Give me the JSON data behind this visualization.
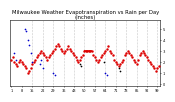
{
  "title": "Milwaukee Weather Evapotranspiration vs Rain per Day\n(Inches)",
  "title_fontsize": 3.8,
  "background_color": "#ffffff",
  "et_color": "#dd0000",
  "rain_color": "#0000cc",
  "black_color": "#000000",
  "pink_color": "#ff8080",
  "ylim": [
    -0.02,
    0.58
  ],
  "tick_fontsize": 2.5,
  "grid_color": "#999999",
  "et_data": [
    0.22,
    0.24,
    0.2,
    0.18,
    0.16,
    0.2,
    0.22,
    0.2,
    0.18,
    0.16,
    0.14,
    0.1,
    0.12,
    0.14,
    0.18,
    0.2,
    0.22,
    0.24,
    0.26,
    0.28,
    0.3,
    0.28,
    0.26,
    0.24,
    0.22,
    0.24,
    0.26,
    0.28,
    0.3,
    0.32,
    0.34,
    0.36,
    0.34,
    0.32,
    0.3,
    0.28,
    0.3,
    0.32,
    0.34,
    0.32,
    0.3,
    0.28,
    0.26,
    0.24,
    0.22,
    0.2,
    0.22,
    0.24,
    0.26,
    0.3,
    0.3,
    0.3,
    0.3,
    0.3,
    0.3,
    0.26,
    0.24,
    0.22,
    0.2,
    0.22,
    0.24,
    0.26,
    0.28,
    0.3,
    0.32,
    0.34,
    0.3,
    0.28,
    0.26,
    0.22,
    0.2,
    0.18,
    0.16,
    0.18,
    0.2,
    0.22,
    0.26,
    0.28,
    0.3,
    0.28,
    0.26,
    0.24,
    0.22,
    0.2,
    0.18,
    0.22,
    0.26,
    0.28,
    0.3,
    0.28,
    0.26,
    0.24,
    0.22,
    0.2,
    0.18,
    0.16,
    0.14,
    0.12,
    0.14,
    0.16
  ],
  "rain_data_x": [
    2,
    3,
    9,
    10,
    11,
    12,
    13,
    14,
    19,
    20,
    21,
    28,
    29,
    63,
    64
  ],
  "rain_data_y": [
    0.28,
    0.22,
    0.5,
    0.48,
    0.4,
    0.35,
    0.28,
    0.2,
    0.18,
    0.22,
    0.14,
    0.1,
    0.08,
    0.1,
    0.08
  ],
  "black_data_x": [
    46,
    47,
    62,
    72,
    73
  ],
  "black_data_y": [
    0.18,
    0.16,
    0.2,
    0.14,
    0.12
  ],
  "red_line_x": [
    49,
    54
  ],
  "red_line_y": [
    0.3,
    0.3
  ],
  "vgrid_positions": [
    14,
    21,
    28,
    35,
    42,
    49,
    56,
    63,
    70,
    77,
    84,
    91,
    98
  ],
  "num_points": 100,
  "x_ticks": [
    0,
    7,
    14,
    21,
    28,
    35,
    42,
    49,
    56,
    63,
    70,
    77,
    84,
    91,
    98
  ],
  "x_tick_labels": [
    "1",
    "8",
    "15",
    "22",
    "29",
    "36",
    "43",
    "50",
    "57",
    "64",
    "71",
    "78",
    "85",
    "92",
    "99"
  ],
  "y_ticks": [
    0.0,
    0.1,
    0.2,
    0.3,
    0.4,
    0.5
  ],
  "y_tick_labels": [
    "0",
    ".1",
    ".2",
    ".3",
    ".4",
    ".5"
  ]
}
